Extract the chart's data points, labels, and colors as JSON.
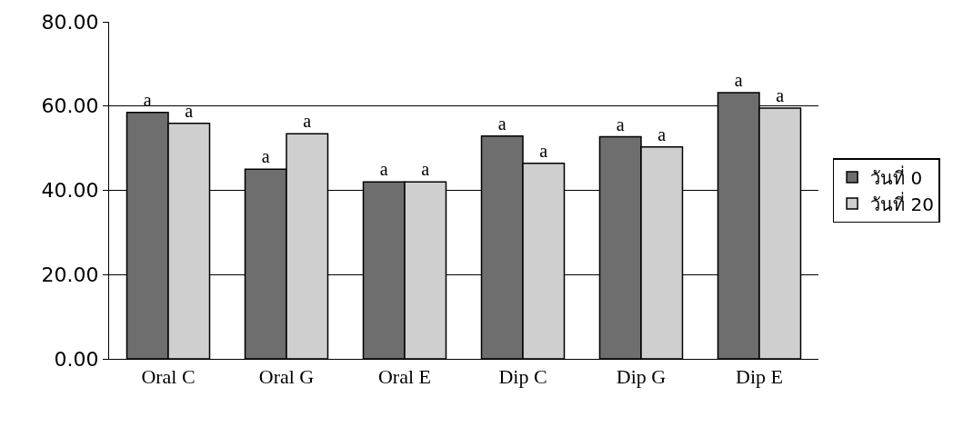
{
  "chart_data": {
    "type": "bar",
    "categories": [
      "Oral C",
      "Oral G",
      "Oral E",
      "Dip C",
      "Dip G",
      "Dip E"
    ],
    "series": [
      {
        "name": "วันที่ 0",
        "color": "#6e6e6e",
        "values": [
          58.5,
          45.0,
          42.0,
          52.9,
          52.7,
          63.2
        ],
        "value_labels": [
          "a",
          "a",
          "a",
          "a",
          "a",
          "a"
        ]
      },
      {
        "name": "วันที่ 20",
        "color": "#cfcfcf",
        "values": [
          55.9,
          53.4,
          42.0,
          46.4,
          50.3,
          59.5
        ],
        "value_labels": [
          "a",
          "a",
          "a",
          "a",
          "a",
          "a"
        ]
      }
    ],
    "ylim": [
      0,
      80
    ],
    "yticks": [
      {
        "value": 0,
        "label": "0.00"
      },
      {
        "value": 20,
        "label": "20.00"
      },
      {
        "value": 40,
        "label": "40.00"
      },
      {
        "value": 60,
        "label": "60.00"
      },
      {
        "value": 80,
        "label": "80.00"
      }
    ],
    "grid": "y",
    "legend": "right"
  }
}
